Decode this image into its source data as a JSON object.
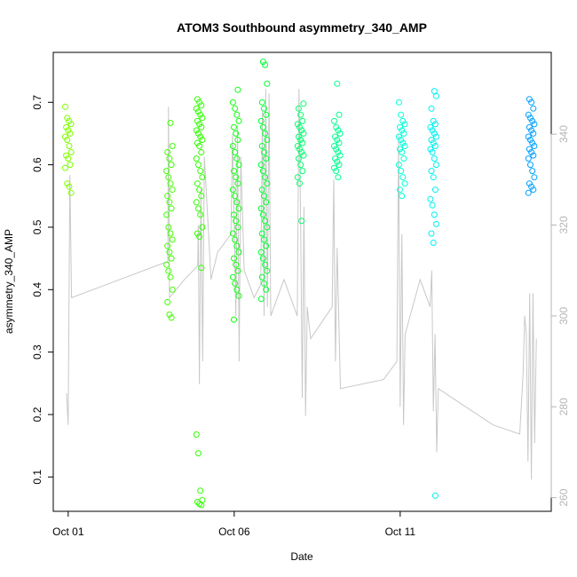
{
  "chart_data": {
    "type": "scatter",
    "title": "ATOM3 Southbound asymmetry_340_AMP",
    "xlabel": "Date",
    "ylabel": "asymmetry_340_AMP",
    "x_ticks": [
      {
        "label": "Oct 01",
        "day": 1
      },
      {
        "label": "Oct 06",
        "day": 6
      },
      {
        "label": "Oct 11",
        "day": 11
      }
    ],
    "xlim_days": [
      0.55,
      15.55
    ],
    "ylim": [
      0.045,
      0.78
    ],
    "y_ticks": [
      0.1,
      0.2,
      0.3,
      0.4,
      0.5,
      0.6,
      0.7
    ],
    "y2_ticks": [
      260,
      280,
      300,
      320,
      340
    ],
    "y2lim": [
      257,
      358
    ],
    "grid": false,
    "point_style": "open-circle",
    "secondary_series_color": "#c8c8c8",
    "clusters": [
      {
        "day": 1.0,
        "color": "#80ff00",
        "values": [
          0.693,
          0.675,
          0.67,
          0.665,
          0.66,
          0.655,
          0.65,
          0.645,
          0.64,
          0.63,
          0.62,
          0.615,
          0.61,
          0.6,
          0.595,
          0.57,
          0.565,
          0.555
        ]
      },
      {
        "day": 4.05,
        "color": "#40ff00",
        "values": [
          0.667,
          0.63,
          0.62,
          0.61,
          0.6,
          0.59,
          0.58,
          0.57,
          0.56,
          0.55,
          0.54,
          0.53,
          0.52,
          0.5,
          0.49,
          0.48,
          0.47,
          0.46,
          0.45,
          0.44,
          0.43,
          0.42,
          0.4,
          0.38,
          0.36,
          0.355
        ]
      },
      {
        "day": 4.95,
        "color": "#30ff00",
        "values": [
          0.705,
          0.7,
          0.695,
          0.69,
          0.685,
          0.68,
          0.675,
          0.67,
          0.665,
          0.66,
          0.655,
          0.65,
          0.645,
          0.64,
          0.635,
          0.63,
          0.62,
          0.61,
          0.6,
          0.59,
          0.58,
          0.57,
          0.56,
          0.55,
          0.54,
          0.53,
          0.52,
          0.5,
          0.49,
          0.485,
          0.435,
          0.168,
          0.138,
          0.078,
          0.063,
          0.06,
          0.057,
          0.055
        ]
      },
      {
        "day": 6.05,
        "color": "#10ff10",
        "values": [
          0.72,
          0.7,
          0.69,
          0.68,
          0.67,
          0.66,
          0.65,
          0.64,
          0.63,
          0.62,
          0.61,
          0.6,
          0.59,
          0.58,
          0.57,
          0.56,
          0.55,
          0.54,
          0.53,
          0.52,
          0.51,
          0.5,
          0.49,
          0.48,
          0.47,
          0.46,
          0.45,
          0.44,
          0.43,
          0.42,
          0.41,
          0.4,
          0.39,
          0.352
        ]
      },
      {
        "day": 6.9,
        "color": "#00ff30",
        "values": [
          0.765,
          0.76,
          0.73,
          0.7,
          0.69,
          0.68,
          0.67,
          0.66,
          0.65,
          0.64,
          0.63,
          0.62,
          0.61,
          0.6,
          0.59,
          0.58,
          0.57,
          0.56,
          0.55,
          0.54,
          0.53,
          0.52,
          0.51,
          0.5,
          0.49,
          0.48,
          0.47,
          0.46,
          0.45,
          0.44,
          0.43,
          0.42,
          0.41,
          0.4,
          0.385
        ]
      },
      {
        "day": 8.0,
        "color": "#00ff70",
        "values": [
          0.698,
          0.69,
          0.68,
          0.67,
          0.665,
          0.66,
          0.655,
          0.65,
          0.645,
          0.64,
          0.635,
          0.63,
          0.625,
          0.62,
          0.615,
          0.61,
          0.6,
          0.59,
          0.58,
          0.57,
          0.51
        ]
      },
      {
        "day": 9.1,
        "color": "#00ff90",
        "values": [
          0.73,
          0.68,
          0.67,
          0.66,
          0.655,
          0.65,
          0.645,
          0.64,
          0.635,
          0.63,
          0.625,
          0.62,
          0.615,
          0.61,
          0.605,
          0.6,
          0.595,
          0.59,
          0.58
        ]
      },
      {
        "day": 11.05,
        "color": "#00ffd8",
        "values": [
          0.7,
          0.68,
          0.67,
          0.665,
          0.66,
          0.655,
          0.65,
          0.645,
          0.64,
          0.635,
          0.63,
          0.625,
          0.62,
          0.61,
          0.6,
          0.59,
          0.58,
          0.57,
          0.56,
          0.55
        ]
      },
      {
        "day": 12.0,
        "color": "#00f0f0",
        "values": [
          0.718,
          0.71,
          0.69,
          0.67,
          0.665,
          0.66,
          0.655,
          0.65,
          0.645,
          0.64,
          0.635,
          0.63,
          0.625,
          0.62,
          0.61,
          0.6,
          0.59,
          0.58,
          0.56,
          0.545,
          0.535,
          0.52,
          0.505,
          0.49,
          0.475,
          0.07
        ]
      },
      {
        "day": 14.95,
        "color": "#00a0ff",
        "values": [
          0.705,
          0.7,
          0.69,
          0.68,
          0.675,
          0.67,
          0.665,
          0.66,
          0.655,
          0.65,
          0.645,
          0.64,
          0.635,
          0.63,
          0.625,
          0.62,
          0.615,
          0.61,
          0.6,
          0.59,
          0.58,
          0.57,
          0.565,
          0.56,
          0.555
        ]
      }
    ],
    "secondary_line": [
      [
        0.95,
        283
      ],
      [
        1.0,
        276
      ],
      [
        1.05,
        331
      ],
      [
        1.1,
        304
      ],
      [
        4.0,
        312
      ],
      [
        4.02,
        346
      ],
      [
        4.05,
        304
      ],
      [
        4.5,
        308
      ],
      [
        4.9,
        311
      ],
      [
        4.92,
        320
      ],
      [
        4.95,
        285
      ],
      [
        5.0,
        328
      ],
      [
        5.05,
        290
      ],
      [
        5.1,
        335
      ],
      [
        5.2,
        322
      ],
      [
        5.3,
        308
      ],
      [
        5.5,
        314
      ],
      [
        5.9,
        318
      ],
      [
        5.95,
        340
      ],
      [
        6.05,
        300
      ],
      [
        6.1,
        342
      ],
      [
        6.15,
        290
      ],
      [
        6.2,
        335
      ],
      [
        6.3,
        310
      ],
      [
        6.6,
        304
      ],
      [
        6.8,
        307
      ],
      [
        6.85,
        345
      ],
      [
        6.9,
        300
      ],
      [
        6.95,
        350
      ],
      [
        7.0,
        302
      ],
      [
        7.05,
        349
      ],
      [
        7.1,
        300
      ],
      [
        7.5,
        308
      ],
      [
        7.9,
        300
      ],
      [
        7.95,
        350
      ],
      [
        8.0,
        322
      ],
      [
        8.05,
        282
      ],
      [
        8.1,
        324
      ],
      [
        8.15,
        278
      ],
      [
        8.2,
        302
      ],
      [
        8.3,
        295
      ],
      [
        8.95,
        302
      ],
      [
        9.0,
        330
      ],
      [
        9.05,
        290
      ],
      [
        9.1,
        315
      ],
      [
        9.15,
        300
      ],
      [
        9.2,
        284
      ],
      [
        10.5,
        286
      ],
      [
        10.9,
        290
      ],
      [
        10.95,
        340
      ],
      [
        11.0,
        280
      ],
      [
        11.05,
        318
      ],
      [
        11.1,
        276
      ],
      [
        11.15,
        296
      ],
      [
        11.6,
        308
      ],
      [
        11.9,
        302
      ],
      [
        11.95,
        310
      ],
      [
        12.0,
        279
      ],
      [
        12.05,
        296
      ],
      [
        12.1,
        270
      ],
      [
        12.15,
        284
      ],
      [
        13.8,
        276
      ],
      [
        14.6,
        274
      ],
      [
        14.7,
        287
      ],
      [
        14.75,
        300
      ],
      [
        14.8,
        296
      ],
      [
        14.85,
        268
      ],
      [
        14.9,
        305
      ],
      [
        14.95,
        264
      ],
      [
        15.0,
        305
      ],
      [
        15.05,
        272
      ],
      [
        15.1,
        295
      ]
    ]
  }
}
